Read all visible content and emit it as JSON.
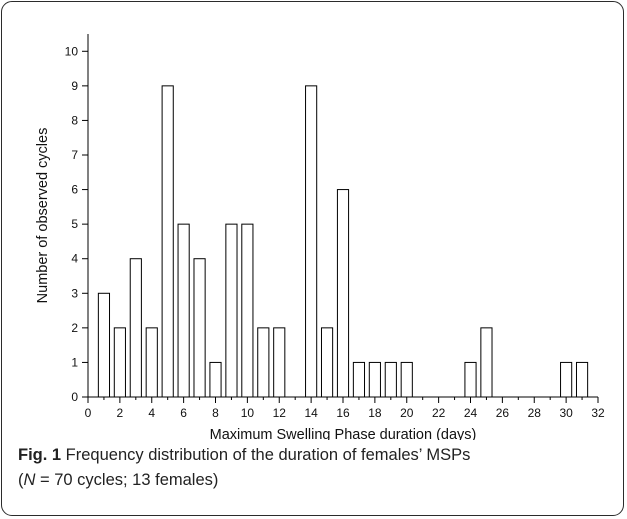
{
  "chart_data": {
    "type": "bar",
    "xlabel": "Maximum Swelling Phase duration (days)",
    "ylabel": "Number of observed cycles",
    "x": [
      1,
      2,
      3,
      4,
      5,
      6,
      7,
      8,
      9,
      10,
      11,
      12,
      14,
      15,
      16,
      17,
      18,
      19,
      20,
      24,
      25,
      30,
      31
    ],
    "values": [
      3,
      2,
      4,
      2,
      9,
      5,
      4,
      1,
      5,
      5,
      2,
      2,
      9,
      2,
      6,
      1,
      1,
      1,
      1,
      1,
      2,
      1,
      1
    ],
    "xlim": [
      0,
      32
    ],
    "ylim": [
      0,
      10.5
    ],
    "x_ticks": [
      "0",
      "2",
      "4",
      "6",
      "8",
      "10",
      "12",
      "14",
      "16",
      "18",
      "20",
      "22",
      "24",
      "26",
      "28",
      "30",
      "32"
    ],
    "y_ticks": [
      "0",
      "1",
      "2",
      "3",
      "4",
      "5",
      "6",
      "7",
      "8",
      "9",
      "10"
    ],
    "bar_color": "#ffffff",
    "bar_edge_color": "#000000",
    "grid": false,
    "legend": "none"
  },
  "caption": {
    "label": "Fig. 1",
    "line1": " Frequency distribution of the duration of females’ MSPs",
    "open_paren": "(",
    "n_symbol": "N",
    "line2_rest": " = 70 cycles; 13 females)"
  },
  "colors": {
    "frame": "#2b2b2b",
    "text": "#222222"
  }
}
